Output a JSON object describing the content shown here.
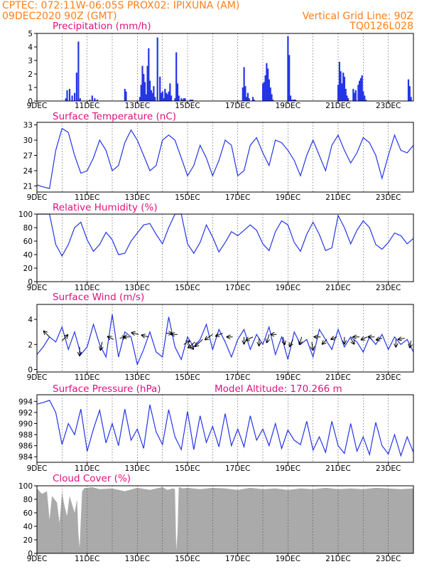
{
  "colors": {
    "header": "#ff7f1a",
    "title": "#e0107f",
    "series": "#2535e8",
    "cloud": "#aaaaaa",
    "grid": "#444444"
  },
  "header": {
    "line1_left": "CPTEC:   072:11W-06:05S   PROX02: IPIXUNA (AM)",
    "line2_left": "09DEC2020 90Z (GMT)",
    "line2_right": "Vertical Grid Line: 90Z",
    "line3_right": "TQ0126L028"
  },
  "x_axis": {
    "labels": [
      "9DEC",
      "11DEC",
      "13DEC",
      "15DEC",
      "17DEC",
      "19DEC",
      "21DEC",
      "23DEC"
    ],
    "label_days": [
      0,
      2,
      4,
      6,
      8,
      10,
      12,
      14
    ],
    "range_days": [
      0,
      15
    ]
  },
  "chart_data": [
    {
      "id": "precip",
      "type": "bar",
      "title": "Precipitation (mm/h)",
      "ylim": [
        0,
        5
      ],
      "yticks": [
        0,
        1,
        2,
        3,
        4,
        5
      ],
      "x_days": [
        1.15,
        1.2,
        1.3,
        1.4,
        1.5,
        1.58,
        1.65,
        1.72,
        2.1,
        2.2,
        2.3,
        2.4,
        3.5,
        3.55,
        4.1,
        4.15,
        4.2,
        4.25,
        4.3,
        4.35,
        4.4,
        4.45,
        4.5,
        4.55,
        4.6,
        4.65,
        4.7,
        4.8,
        4.9,
        4.95,
        5.0,
        5.05,
        5.1,
        5.15,
        5.2,
        5.25,
        5.3,
        5.35,
        5.5,
        5.55,
        5.6,
        5.65,
        5.75,
        5.8,
        5.85,
        5.9,
        6.1,
        6.15,
        6.2,
        8.2,
        8.25,
        8.3,
        8.35,
        8.4,
        8.45,
        8.6,
        8.65,
        9.0,
        9.05,
        9.1,
        9.15,
        9.2,
        9.25,
        9.3,
        9.35,
        9.4,
        10.0,
        10.05,
        10.1,
        10.15,
        10.2,
        10.25,
        10.3,
        12.0,
        12.05,
        12.1,
        12.15,
        12.2,
        12.25,
        12.3,
        12.35,
        12.4,
        12.6,
        12.65,
        12.7,
        12.8,
        12.85,
        12.9,
        12.95,
        13.0,
        13.05,
        13.1,
        14.8,
        14.85,
        14.9
      ],
      "values": [
        0.2,
        0.8,
        0.9,
        0.4,
        0.6,
        2.1,
        4.4,
        0.2,
        0.1,
        0.4,
        0.2,
        0.1,
        0.9,
        0.7,
        0.3,
        1.2,
        2.6,
        2.0,
        1.4,
        0.5,
        2.6,
        3.9,
        1.5,
        0.8,
        0.6,
        1.1,
        0.3,
        4.7,
        1.8,
        0.6,
        0.7,
        0.2,
        0.9,
        0.6,
        0.5,
        0.7,
        1.3,
        0.4,
        0.2,
        3.6,
        1.3,
        0.4,
        0.2,
        0.1,
        0.2,
        0.2,
        0.1,
        0.1,
        0.1,
        1.0,
        2.5,
        1.1,
        0.3,
        0.6,
        0.2,
        0.3,
        0.1,
        1.3,
        1.4,
        1.9,
        2.8,
        2.4,
        1.6,
        1.0,
        0.5,
        0.1,
        4.8,
        3.4,
        0.4,
        0.1,
        0.1,
        0.1,
        0.1,
        1.2,
        2.9,
        2.2,
        1.3,
        2.1,
        1.8,
        0.9,
        0.4,
        0.2,
        0.9,
        0.6,
        0.8,
        1.2,
        1.5,
        1.7,
        1.9,
        0.7,
        0.4,
        0.1,
        1.6,
        1.1,
        0.3
      ]
    },
    {
      "id": "temp",
      "type": "line",
      "title": "Surface Temperature (nC)",
      "ylim": [
        19.8,
        33.5
      ],
      "yticks": [
        21,
        24,
        27,
        30,
        33
      ],
      "x_days": [
        0,
        0.25,
        0.5,
        0.75,
        1,
        1.25,
        1.5,
        1.75,
        2,
        2.25,
        2.5,
        2.75,
        3,
        3.25,
        3.5,
        3.75,
        4,
        4.25,
        4.5,
        4.75,
        5,
        5.25,
        5.5,
        5.75,
        6,
        6.25,
        6.5,
        6.75,
        7,
        7.25,
        7.5,
        7.75,
        8,
        8.25,
        8.5,
        8.75,
        9,
        9.25,
        9.5,
        9.75,
        10,
        10.25,
        10.5,
        10.75,
        11,
        11.25,
        11.5,
        11.75,
        12,
        12.25,
        12.5,
        12.75,
        13,
        13.25,
        13.5,
        13.75,
        14,
        14.25,
        14.5,
        14.75,
        15
      ],
      "values": [
        21.2,
        20.8,
        20.5,
        28,
        32.3,
        31.5,
        27,
        23.5,
        24,
        26.5,
        30,
        28,
        24,
        25,
        29.5,
        32,
        30,
        27,
        24,
        25,
        30,
        31,
        30,
        26.5,
        23,
        25,
        29,
        26.5,
        23,
        26,
        30,
        29,
        23,
        24,
        29,
        30.5,
        27.5,
        25,
        30,
        29.5,
        28,
        26,
        23,
        27,
        30,
        27,
        24,
        29,
        31,
        28,
        25.5,
        27.5,
        30.5,
        29.5,
        27,
        22.5,
        27,
        31,
        28,
        27.5,
        29
      ]
    },
    {
      "id": "rh",
      "type": "line",
      "title": "Relative Humidity (%)",
      "ylim": [
        0,
        100
      ],
      "yticks": [
        0,
        20,
        40,
        60,
        80,
        100
      ],
      "x_days": [
        0,
        0.25,
        0.5,
        0.75,
        1,
        1.25,
        1.5,
        1.75,
        2,
        2.25,
        2.5,
        2.75,
        3,
        3.25,
        3.5,
        3.75,
        4,
        4.25,
        4.5,
        4.75,
        5,
        5.25,
        5.5,
        5.75,
        6,
        6.25,
        6.5,
        6.75,
        7,
        7.25,
        7.5,
        7.75,
        8,
        8.25,
        8.5,
        8.75,
        9,
        9.25,
        9.5,
        9.75,
        10,
        10.25,
        10.5,
        10.75,
        11,
        11.25,
        11.5,
        11.75,
        12,
        12.25,
        12.5,
        12.75,
        13,
        13.25,
        13.5,
        13.75,
        14,
        14.25,
        14.5,
        14.75,
        15
      ],
      "values": [
        100,
        100,
        100,
        55,
        38,
        55,
        80,
        88,
        62,
        45,
        55,
        73,
        62,
        40,
        42,
        60,
        72,
        84,
        86,
        70,
        56,
        80,
        100,
        100,
        56,
        42,
        58,
        84,
        66,
        44,
        58,
        74,
        68,
        76,
        84,
        76,
        56,
        46,
        74,
        90,
        84,
        58,
        45,
        70,
        88,
        70,
        46,
        50,
        98,
        80,
        56,
        76,
        90,
        80,
        55,
        48,
        58,
        72,
        68,
        56,
        64
      ]
    },
    {
      "id": "wind",
      "type": "line",
      "title": "Surface Wind (m/s)",
      "ylim": [
        -0.2,
        5.2
      ],
      "yticks": [
        0,
        2,
        4
      ],
      "x_days": [
        0,
        0.25,
        0.5,
        0.75,
        1,
        1.25,
        1.5,
        1.75,
        2,
        2.25,
        2.5,
        2.75,
        3,
        3.25,
        3.5,
        3.75,
        4,
        4.25,
        4.5,
        4.75,
        5,
        5.25,
        5.5,
        5.75,
        6,
        6.25,
        6.5,
        6.75,
        7,
        7.25,
        7.5,
        7.75,
        8,
        8.25,
        8.5,
        8.75,
        9,
        9.25,
        9.5,
        9.75,
        10,
        10.25,
        10.5,
        10.75,
        11,
        11.25,
        11.5,
        11.75,
        12,
        12.25,
        12.5,
        12.75,
        13,
        13.25,
        13.5,
        13.75,
        14,
        14.25,
        14.5,
        14.75,
        15
      ],
      "values": [
        1.2,
        1.8,
        2.6,
        2.2,
        3.4,
        1.6,
        3.0,
        1.2,
        1.8,
        3.6,
        2.0,
        1.0,
        4.4,
        1.0,
        3.0,
        2.6,
        0.4,
        1.6,
        3.0,
        1.4,
        1.0,
        4.2,
        1.8,
        0.8,
        2.6,
        1.8,
        2.4,
        3.6,
        1.6,
        3.2,
        2.2,
        1.0,
        2.4,
        3.2,
        1.6,
        2.8,
        2.0,
        3.4,
        1.2,
        2.6,
        0.8,
        3.0,
        2.0,
        2.4,
        1.0,
        3.2,
        2.4,
        1.6,
        3.2,
        1.8,
        2.6,
        2.2,
        1.4,
        2.6,
        2.0,
        2.8,
        1.6,
        2.6,
        2.0,
        2.4,
        1.4
      ],
      "arrows": [
        {
          "d": 0.5,
          "s": 2.6,
          "u": -1,
          "v": 1
        },
        {
          "d": 1.0,
          "s": 2.3,
          "u": 1,
          "v": 1
        },
        {
          "d": 1.7,
          "s": 1.8,
          "u": 0,
          "v": -1.5
        },
        {
          "d": 2.6,
          "s": 2.2,
          "u": -0.3,
          "v": -1.4
        },
        {
          "d": 3.05,
          "s": 2.4,
          "u": -1,
          "v": 0.5
        },
        {
          "d": 3.3,
          "s": 2.5,
          "u": 1,
          "v": 0.2
        },
        {
          "d": 3.7,
          "s": 2.6,
          "u": -1.1,
          "v": 0
        },
        {
          "d": 4.05,
          "s": 2.8,
          "u": -1.2,
          "v": 0.3
        },
        {
          "d": 4.45,
          "s": 2.6,
          "u": -1.2,
          "v": 0.3
        },
        {
          "d": 5.15,
          "s": 2.9,
          "u": 1,
          "v": 0
        },
        {
          "d": 5.6,
          "s": 2.8,
          "u": -1.1,
          "v": 0
        },
        {
          "d": 5.85,
          "s": 2.0,
          "u": 1,
          "v": 0.6
        },
        {
          "d": 6.05,
          "s": 2.0,
          "u": 0.8,
          "v": -0.8
        },
        {
          "d": 6.3,
          "s": 2.2,
          "u": -1.2,
          "v": -1
        },
        {
          "d": 6.6,
          "s": 2.4,
          "u": -1.3,
          "v": -1.2
        },
        {
          "d": 7.0,
          "s": 2.8,
          "u": -1.3,
          "v": -0.9
        },
        {
          "d": 7.4,
          "s": 2.9,
          "u": -1.2,
          "v": -0.5
        },
        {
          "d": 7.8,
          "s": 2.6,
          "u": -1,
          "v": 0
        },
        {
          "d": 8.25,
          "s": 2.6,
          "u": 0,
          "v": -1.2
        },
        {
          "d": 8.6,
          "s": 2.6,
          "u": -1.2,
          "v": -0.6
        },
        {
          "d": 8.85,
          "s": 2.5,
          "u": 0,
          "v": -1.3
        },
        {
          "d": 9.25,
          "s": 2.8,
          "u": -0.4,
          "v": -1.4
        },
        {
          "d": 9.55,
          "s": 2.8,
          "u": -1,
          "v": 0
        },
        {
          "d": 9.8,
          "s": 2.6,
          "u": 0.3,
          "v": -1.3
        },
        {
          "d": 10.2,
          "s": 2.4,
          "u": -0.6,
          "v": -1.2
        },
        {
          "d": 10.55,
          "s": 2.6,
          "u": -0.4,
          "v": -1.3
        },
        {
          "d": 10.95,
          "s": 2.2,
          "u": 0.2,
          "v": -1.4
        },
        {
          "d": 11.3,
          "s": 2.6,
          "u": -1.1,
          "v": 0
        },
        {
          "d": 11.55,
          "s": 2.4,
          "u": -0.8,
          "v": -0.8
        },
        {
          "d": 11.95,
          "s": 2.6,
          "u": -1,
          "v": -0.4
        },
        {
          "d": 12.25,
          "s": 2.6,
          "u": 0,
          "v": -1.2
        },
        {
          "d": 12.5,
          "s": 2.5,
          "u": 0.6,
          "v": -1
        },
        {
          "d": 12.85,
          "s": 2.6,
          "u": -1.1,
          "v": 0
        },
        {
          "d": 13.15,
          "s": 2.6,
          "u": -1,
          "v": -0.5
        },
        {
          "d": 13.45,
          "s": 2.6,
          "u": -1.1,
          "v": 0
        },
        {
          "d": 13.75,
          "s": 2.5,
          "u": -1,
          "v": -0.3
        },
        {
          "d": 14.3,
          "s": 2.4,
          "u": 0,
          "v": -1.3
        },
        {
          "d": 14.65,
          "s": 2.5,
          "u": -1.1,
          "v": -0.2
        },
        {
          "d": 14.9,
          "s": 2.3,
          "u": -0.2,
          "v": -1.2
        }
      ]
    },
    {
      "id": "pres",
      "type": "line",
      "title": "Surface Pressure (hPa)",
      "subtitle": "Model Altitude: 170.266 m",
      "ylim": [
        983,
        995.2
      ],
      "yticks": [
        984,
        986,
        988,
        990,
        992,
        994
      ],
      "x_days": [
        0,
        0.25,
        0.5,
        0.75,
        1,
        1.25,
        1.5,
        1.75,
        2,
        2.25,
        2.5,
        2.75,
        3,
        3.25,
        3.5,
        3.75,
        4,
        4.25,
        4.5,
        4.75,
        5,
        5.25,
        5.5,
        5.75,
        6,
        6.25,
        6.5,
        6.75,
        7,
        7.25,
        7.5,
        7.75,
        8,
        8.25,
        8.5,
        8.75,
        9,
        9.25,
        9.5,
        9.75,
        10,
        10.25,
        10.5,
        10.75,
        11,
        11.25,
        11.5,
        11.75,
        12,
        12.25,
        12.5,
        12.75,
        13,
        13.25,
        13.5,
        13.75,
        14,
        14.25,
        14.5,
        14.75,
        15
      ],
      "values": [
        993.5,
        993.8,
        994.2,
        992,
        986.2,
        990,
        988,
        992.6,
        985,
        989,
        992.4,
        986.5,
        990,
        986,
        992.6,
        987,
        989,
        985.5,
        993.4,
        988.5,
        986.2,
        992.5,
        987.6,
        985.3,
        992.2,
        985.3,
        991.4,
        986.6,
        989.5,
        985.8,
        991.8,
        986,
        989,
        985.8,
        991.4,
        987,
        989,
        986,
        990,
        985.5,
        988.8,
        987,
        986.2,
        990.4,
        985.2,
        987.6,
        984.8,
        990.4,
        986,
        984.6,
        990,
        985,
        987.6,
        984.4,
        990.2,
        986,
        984.5,
        988,
        984.2,
        987.6,
        984.8
      ]
    },
    {
      "id": "cloud",
      "type": "area",
      "title": "Cloud Cover (%)",
      "ylim": [
        0,
        100
      ],
      "yticks": [
        0,
        20,
        40,
        60,
        80,
        100
      ],
      "x_days": [
        0,
        0.2,
        0.4,
        0.5,
        0.6,
        0.8,
        0.9,
        1.0,
        1.1,
        1.2,
        1.3,
        1.5,
        1.6,
        1.65,
        1.7,
        1.75,
        1.8,
        1.9,
        2.0,
        2.2,
        2.5,
        3.0,
        3.5,
        4.0,
        4.5,
        5.0,
        5.2,
        5.4,
        5.5,
        5.55,
        5.6,
        5.65,
        5.7,
        5.8,
        6.0,
        6.5,
        7.0,
        7.5,
        8.0,
        8.5,
        9.0,
        9.5,
        10.0,
        10.5,
        11.0,
        11.5,
        12.0,
        12.5,
        13.0,
        13.5,
        14.0,
        14.5,
        15.0
      ],
      "values": [
        96,
        88,
        92,
        50,
        85,
        75,
        45,
        90,
        70,
        55,
        85,
        60,
        80,
        30,
        8,
        50,
        92,
        97,
        97,
        98,
        95,
        96,
        92,
        97,
        94,
        98,
        94,
        96,
        95,
        5,
        30,
        97,
        98,
        96,
        97,
        95,
        97,
        96,
        94,
        97,
        95,
        96,
        94,
        96,
        95,
        97,
        95,
        96,
        95,
        97,
        96,
        95,
        96
      ]
    }
  ]
}
